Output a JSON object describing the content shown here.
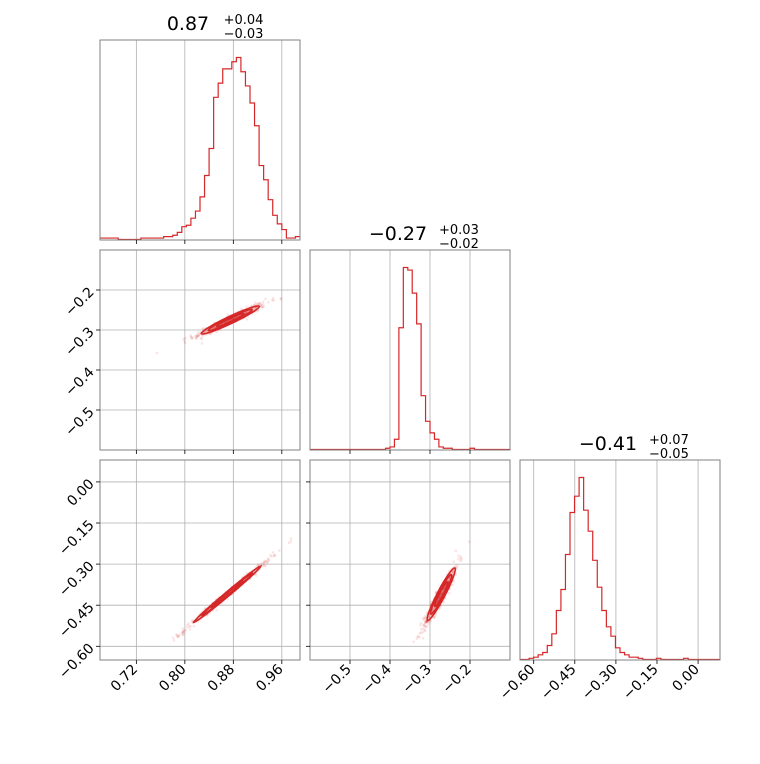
{
  "chart_data": {
    "type": "corner",
    "color": "#d62728",
    "grid": true,
    "parameters": [
      {
        "title_value": "0.87",
        "title_plus": "+0.04",
        "title_minus": "−0.03",
        "display_range": [
          0.66,
          0.99
        ],
        "ticks": [
          "0.72",
          "0.80",
          "0.88",
          "0.96"
        ]
      },
      {
        "title_value": "−0.27",
        "title_plus": "+0.03",
        "title_minus": "−0.02",
        "display_range": [
          -0.6,
          -0.1
        ],
        "ticks": [
          "−0.5",
          "−0.4",
          "−0.3",
          "−0.2"
        ]
      },
      {
        "title_value": "−0.41",
        "title_plus": "+0.07",
        "title_minus": "−0.05",
        "display_range": [
          -0.65,
          0.08
        ],
        "ticks": [
          "−0.60",
          "−0.45",
          "−0.30",
          "−0.15",
          "0.00"
        ]
      }
    ],
    "histograms": [
      {
        "param": 0,
        "x_start": 0.66,
        "x_end": 0.99,
        "counts": [
          1,
          1,
          1,
          1,
          0,
          0,
          0,
          0,
          0,
          1,
          1,
          1,
          1,
          1,
          2,
          2,
          3,
          5,
          9,
          10,
          15,
          20,
          30,
          45,
          64,
          100,
          110,
          120,
          120,
          125,
          128,
          118,
          108,
          96,
          80,
          52,
          42,
          28,
          17,
          11,
          7,
          1,
          1,
          2
        ]
      },
      {
        "param": 1,
        "x_start": -0.6,
        "x_end": -0.1,
        "counts": [
          0,
          0,
          0,
          0,
          0,
          0,
          0,
          0,
          0,
          0,
          0,
          0,
          0,
          0,
          0,
          0,
          0,
          1,
          2,
          8,
          95,
          142,
          140,
          122,
          98,
          42,
          22,
          13,
          8,
          2,
          1,
          1,
          0,
          0,
          0,
          0,
          1,
          0,
          0,
          0,
          0,
          0,
          0,
          0,
          0
        ]
      },
      {
        "param": 2,
        "x_start": -0.65,
        "x_end": 0.08,
        "counts": [
          0,
          0,
          1,
          2,
          4,
          6,
          12,
          22,
          42,
          60,
          90,
          126,
          140,
          156,
          128,
          110,
          85,
          62,
          42,
          28,
          20,
          10,
          6,
          4,
          2,
          2,
          1,
          0,
          0,
          0,
          1,
          0,
          0,
          0,
          0,
          0,
          1,
          0,
          0,
          0,
          0,
          0,
          0,
          0
        ]
      }
    ],
    "scatter_2d": [
      {
        "x_param": 0,
        "y_param": 1,
        "center": [
          0.875,
          -0.275
        ],
        "corr": 0.96,
        "sd": [
          0.03,
          0.022
        ]
      },
      {
        "x_param": 0,
        "y_param": 2,
        "center": [
          0.87,
          -0.41
        ],
        "corr": 0.995,
        "sd": [
          0.035,
          0.065
        ]
      },
      {
        "x_param": 1,
        "y_param": 2,
        "center": [
          -0.272,
          -0.41
        ],
        "corr": 0.95,
        "sd": [
          0.022,
          0.06
        ]
      }
    ]
  }
}
